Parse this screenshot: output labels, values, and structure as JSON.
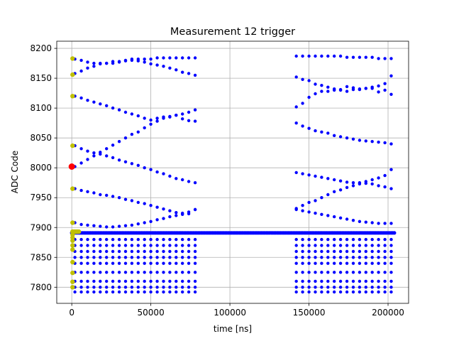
{
  "chart_data": {
    "type": "scatter",
    "title": "Measurement 12 trigger",
    "xlabel": "time [ns]",
    "ylabel": "ADC Code",
    "xlim": [
      -9500,
      213000
    ],
    "ylim": [
      7773,
      8212
    ],
    "xticks": [
      0,
      50000,
      100000,
      150000,
      200000
    ],
    "xtick_labels": [
      "0",
      "50000",
      "100000",
      "150000",
      "200000"
    ],
    "yticks": [
      7800,
      7850,
      7900,
      7950,
      8000,
      8050,
      8100,
      8150,
      8200
    ],
    "ytick_labels": [
      "7800",
      "7850",
      "7900",
      "7950",
      "8000",
      "8050",
      "8100",
      "8150",
      "8200"
    ],
    "grid": true,
    "colors": {
      "blue_series": "#0000ff",
      "olive_series": "#bfbf00",
      "red_series": "#ff0000",
      "grid": "#b0b0b0",
      "axes": "#000000"
    },
    "series": [
      {
        "color": "blue",
        "description_points": "trigger burst samples",
        "segments": [
          {
            "x_start": 2000,
            "x_end": 78000,
            "dx": 4000
          },
          {
            "x_start": 142000,
            "x_end": 202000,
            "dx": 4000
          }
        ],
        "upper_traces": [
          {
            "segment": 0,
            "y": [
              8182,
              8180,
              8177,
              8175,
              8175,
              8175,
              8175,
              8177,
              8180,
              8182,
              8182,
              8182,
              8182,
              8184,
              8184,
              8184,
              8184,
              8184,
              8184,
              8184
            ]
          },
          {
            "segment": 0,
            "y": [
              8158,
              8162,
              8167,
              8170,
              8174,
              8175,
              8178,
              8178,
              8179,
              8180,
              8179,
              8177,
              8174,
              8172,
              8170,
              8167,
              8164,
              8160,
              8158,
              8155
            ]
          },
          {
            "segment": 0,
            "y": [
              8120,
              8117,
              8113,
              8110,
              8107,
              8104,
              8100,
              8097,
              8093,
              8090,
              8087,
              8083,
              8080,
              8083,
              8085,
              8086,
              8088,
              8090,
              8093,
              8097
            ]
          },
          {
            "segment": 0,
            "y": [
              8002,
              8008,
              8014,
              8020,
              8026,
              8032,
              8038,
              8044,
              8050,
              8056,
              8060,
              8067,
              8073,
              8078,
              8083,
              8085,
              8088,
              8082,
              8079,
              8078
            ]
          },
          {
            "segment": 0,
            "y": [
              8037,
              8032,
              8028,
              8025,
              8023,
              8020,
              8017,
              8013,
              8010,
              8007,
              8004,
              8000,
              7997,
              7993,
              7990,
              7986,
              7982,
              7980,
              7977,
              7975
            ]
          },
          {
            "segment": 0,
            "y": [
              7965,
              7962,
              7960,
              7958,
              7955,
              7954,
              7952,
              7950,
              7947,
              7945,
              7942,
              7940,
              7937,
              7934,
              7931,
              7928,
              7925,
              7924,
              7923,
              7930
            ]
          },
          {
            "segment": 0,
            "y": [
              7908,
              7905,
              7904,
              7903,
              7902,
              7901,
              7901,
              7902,
              7903,
              7904,
              7906,
              7908,
              7910,
              7913,
              7915,
              7918,
              7920,
              7922,
              7926,
              7930
            ]
          },
          {
            "segment": 1,
            "y": [
              8187,
              8187,
              8187,
              8187,
              8187,
              8187,
              8187,
              8187,
              8185,
              8185,
              8185,
              8185,
              8185,
              8183,
              8183,
              8183
            ]
          },
          {
            "segment": 1,
            "y": [
              8152,
              8148,
              8146,
              8140,
              8138,
              8135,
              8132,
              8130,
              8128,
              8131,
              8131,
              8133,
              8133,
              8137,
              8141,
              8154
            ]
          },
          {
            "segment": 1,
            "y": [
              8102,
              8108,
              8118,
              8124,
              8128,
              8128,
              8130,
              8131,
              8136,
              8134,
              8132,
              8133,
              8135,
              8127,
              8130,
              8123
            ]
          },
          {
            "segment": 1,
            "y": [
              8075,
              8070,
              8066,
              8062,
              8060,
              8058,
              8054,
              8052,
              8050,
              8048,
              8046,
              8045,
              8044,
              8043,
              8042,
              8040
            ]
          },
          {
            "segment": 1,
            "y": [
              7992,
              7990,
              7988,
              7986,
              7984,
              7982,
              7980,
              7978,
              7976,
              7975,
              7975,
              7974,
              7973,
              7970,
              7968,
              7965
            ]
          },
          {
            "segment": 1,
            "y": [
              7932,
              7937,
              7942,
              7945,
              7950,
              7955,
              7960,
              7963,
              7967,
              7970,
              7973,
              7977,
              7980,
              7983,
              7987,
              7997
            ]
          },
          {
            "segment": 1,
            "y": [
              7930,
              7928,
              7926,
              7924,
              7922,
              7920,
              7918,
              7916,
              7914,
              7912,
              7910,
              7909,
              7908,
              7907,
              7907,
              7907
            ]
          }
        ],
        "baseline": {
          "y": 7891,
          "x_start": 0,
          "x_end": 204000,
          "dx": 1000
        },
        "lower_levels": [
          7880,
          7870,
          7860,
          7850,
          7840,
          7825,
          7810,
          7800,
          7792
        ]
      },
      {
        "color": "olive",
        "x": [
          500,
          500,
          500,
          500,
          500,
          500,
          500,
          500,
          500,
          500,
          500,
          500,
          500,
          500,
          500,
          500,
          1500,
          2500,
          3500,
          4500
        ],
        "y": [
          8183,
          8156,
          8120,
          8037,
          7965,
          7908,
          7893,
          7888,
          7883,
          7878,
          7870,
          7863,
          7842,
          7824,
          7809,
          7800,
          7893,
          7893,
          7893,
          7893
        ]
      },
      {
        "color": "red",
        "x": [
          0
        ],
        "y": [
          8002
        ]
      }
    ]
  }
}
